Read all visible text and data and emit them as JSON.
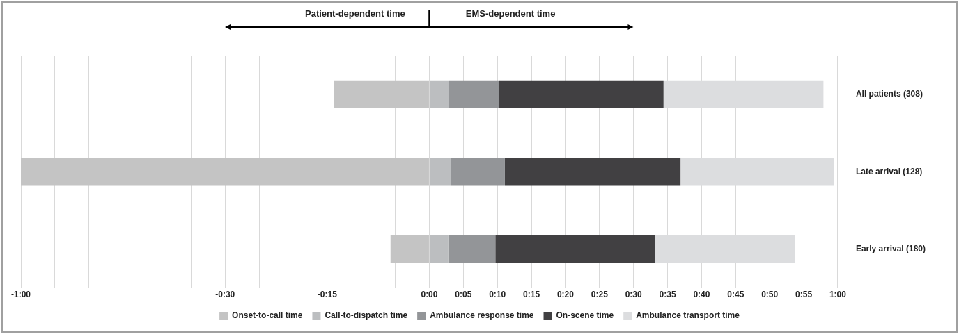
{
  "chart_data": {
    "type": "bar",
    "orientation": "horizontal",
    "stacked": true,
    "categories": [
      "All patients (308)",
      "Late arrival (128)",
      "Early arrival (180)"
    ],
    "series": [
      {
        "name": "Onset-to-call time",
        "color": "#c4c4c4",
        "values": [
          -14,
          -60,
          -5.7
        ]
      },
      {
        "name": "Call-to-dispatch time",
        "color": "#bcbec0",
        "values": [
          2.9,
          3.2,
          2.8
        ]
      },
      {
        "name": "Ambulance response time",
        "color": "#939598",
        "values": [
          7.3,
          7.9,
          6.9
        ]
      },
      {
        "name": "On-scene time",
        "color": "#414042",
        "values": [
          24.2,
          25.8,
          23.4
        ]
      },
      {
        "name": "Ambulance transport time",
        "color": "#dcdddf",
        "values": [
          23.5,
          22.5,
          20.6
        ]
      }
    ],
    "xlim": [
      -60,
      60
    ],
    "xticks": [
      {
        "value": -60,
        "label": "-1:00"
      },
      {
        "value": -55,
        "label": null
      },
      {
        "value": -50,
        "label": null
      },
      {
        "value": -45,
        "label": null
      },
      {
        "value": -40,
        "label": null
      },
      {
        "value": -35,
        "label": null
      },
      {
        "value": -30,
        "label": "-0:30"
      },
      {
        "value": -25,
        "label": null
      },
      {
        "value": -20,
        "label": null
      },
      {
        "value": -15,
        "label": "-0:15"
      },
      {
        "value": -10,
        "label": null
      },
      {
        "value": -5,
        "label": null
      },
      {
        "value": 0,
        "label": "0:00"
      },
      {
        "value": 5,
        "label": "0:05"
      },
      {
        "value": 10,
        "label": "0:10"
      },
      {
        "value": 15,
        "label": "0:15"
      },
      {
        "value": 20,
        "label": "0:20"
      },
      {
        "value": 25,
        "label": "0:25"
      },
      {
        "value": 30,
        "label": "0:30"
      },
      {
        "value": 35,
        "label": "0:35"
      },
      {
        "value": 40,
        "label": "0:40"
      },
      {
        "value": 45,
        "label": "0:45"
      },
      {
        "value": 50,
        "label": "0:50"
      },
      {
        "value": 55,
        "label": "0:55"
      },
      {
        "value": 60,
        "label": "1:00"
      }
    ],
    "annotations": [
      "Patient-dependent time",
      "EMS-dependent time"
    ],
    "grid": "x",
    "legend": "bottom"
  }
}
